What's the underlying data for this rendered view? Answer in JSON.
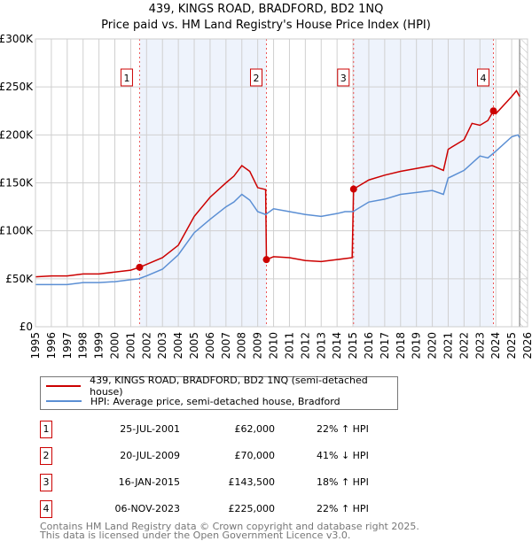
{
  "chart_data": {
    "type": "line",
    "title": "439, KINGS ROAD, BRADFORD, BD2 1NQ",
    "subtitle": "Price paid vs. HM Land Registry's House Price Index (HPI)",
    "ylim": [
      0,
      300000
    ],
    "xlim": [
      1995,
      2026
    ],
    "yticks": [
      "£0",
      "£50K",
      "£100K",
      "£150K",
      "£200K",
      "£250K",
      "£300K"
    ],
    "xticks": [
      "1995",
      "1996",
      "1997",
      "1998",
      "1999",
      "2000",
      "2001",
      "2002",
      "2003",
      "2004",
      "2005",
      "2006",
      "2007",
      "2008",
      "2009",
      "2010",
      "2011",
      "2012",
      "2013",
      "2014",
      "2015",
      "2016",
      "2017",
      "2018",
      "2019",
      "2020",
      "2021",
      "2022",
      "2023",
      "2024",
      "2025",
      "2026"
    ],
    "series": [
      {
        "name": "439, KINGS ROAD, BRADFORD, BD2 1NQ (semi-detached house)",
        "color": "#cc0000",
        "x": [
          1995,
          1996,
          1997,
          1998,
          1999,
          2000,
          2001,
          2001.56,
          2002,
          2003,
          2004,
          2005,
          2006,
          2007,
          2007.5,
          2008,
          2008.5,
          2009,
          2009.5,
          2009.55,
          2010,
          2011,
          2012,
          2013,
          2014,
          2014.95,
          2015.04,
          2016,
          2017,
          2018,
          2019,
          2020,
          2020.7,
          2021,
          2022,
          2022.5,
          2023,
          2023.5,
          2023.85,
          2024,
          2025,
          2025.3,
          2025.5
        ],
        "y": [
          52000,
          53000,
          53000,
          55000,
          55000,
          57000,
          59000,
          62000,
          65000,
          72000,
          85000,
          115000,
          135000,
          150000,
          157000,
          168000,
          162000,
          145000,
          143000,
          70000,
          73000,
          72000,
          69000,
          68000,
          70000,
          72000,
          143500,
          153000,
          158000,
          162000,
          165000,
          168000,
          163000,
          185000,
          195000,
          212000,
          210000,
          215000,
          225000,
          222000,
          240000,
          246000,
          240000
        ]
      },
      {
        "name": "HPI: Average price, semi-detached house, Bradford",
        "color": "#5b8fd4",
        "x": [
          1995,
          1996,
          1997,
          1998,
          1999,
          2000,
          2001,
          2001.5,
          2002,
          2003,
          2004,
          2005,
          2006,
          2007,
          2007.5,
          2008,
          2008.5,
          2009,
          2009.5,
          2010,
          2011,
          2012,
          2013,
          2014,
          2014.5,
          2015,
          2016,
          2017,
          2018,
          2019,
          2020,
          2020.7,
          2021,
          2022,
          2023,
          2023.5,
          2024,
          2025,
          2025.4,
          2025.5
        ],
        "y": [
          44000,
          44000,
          44000,
          46000,
          46000,
          47000,
          49000,
          50000,
          53000,
          60000,
          75000,
          98000,
          112000,
          125000,
          130000,
          138000,
          132000,
          120000,
          117000,
          123000,
          120000,
          117000,
          115000,
          118000,
          120000,
          120000,
          130000,
          133000,
          138000,
          140000,
          142000,
          138000,
          155000,
          163000,
          178000,
          176000,
          183000,
          198000,
          200000,
          197000
        ]
      }
    ],
    "sales": [
      {
        "label": "1",
        "x": 2001.56,
        "y": 62000
      },
      {
        "label": "2",
        "x": 2009.55,
        "y": 70000
      },
      {
        "label": "3",
        "x": 2015.04,
        "y": 143500
      },
      {
        "label": "4",
        "x": 2023.85,
        "y": 225000
      }
    ],
    "shaded": [
      [
        2001.56,
        2009.55
      ],
      [
        2015.04,
        2023.85
      ]
    ],
    "forecast_from": 2025.5
  },
  "header": {
    "title": "439, KINGS ROAD, BRADFORD, BD2 1NQ",
    "subtitle": "Price paid vs. HM Land Registry's House Price Index (HPI)"
  },
  "legend": {
    "property": "439, KINGS ROAD, BRADFORD, BD2 1NQ (semi-detached house)",
    "hpi": "HPI: Average price, semi-detached house, Bradford"
  },
  "transactions": [
    {
      "num": "1",
      "date": "25-JUL-2001",
      "price": "£62,000",
      "hpi": "22% ↑ HPI"
    },
    {
      "num": "2",
      "date": "20-JUL-2009",
      "price": "£70,000",
      "hpi": "41% ↓ HPI"
    },
    {
      "num": "3",
      "date": "16-JAN-2015",
      "price": "£143,500",
      "hpi": "18% ↑ HPI"
    },
    {
      "num": "4",
      "date": "06-NOV-2023",
      "price": "£225,000",
      "hpi": "22% ↑ HPI"
    }
  ],
  "footer": {
    "line1": "Contains HM Land Registry data © Crown copyright and database right 2025.",
    "line2": "This data is licensed under the Open Government Licence v3.0."
  }
}
